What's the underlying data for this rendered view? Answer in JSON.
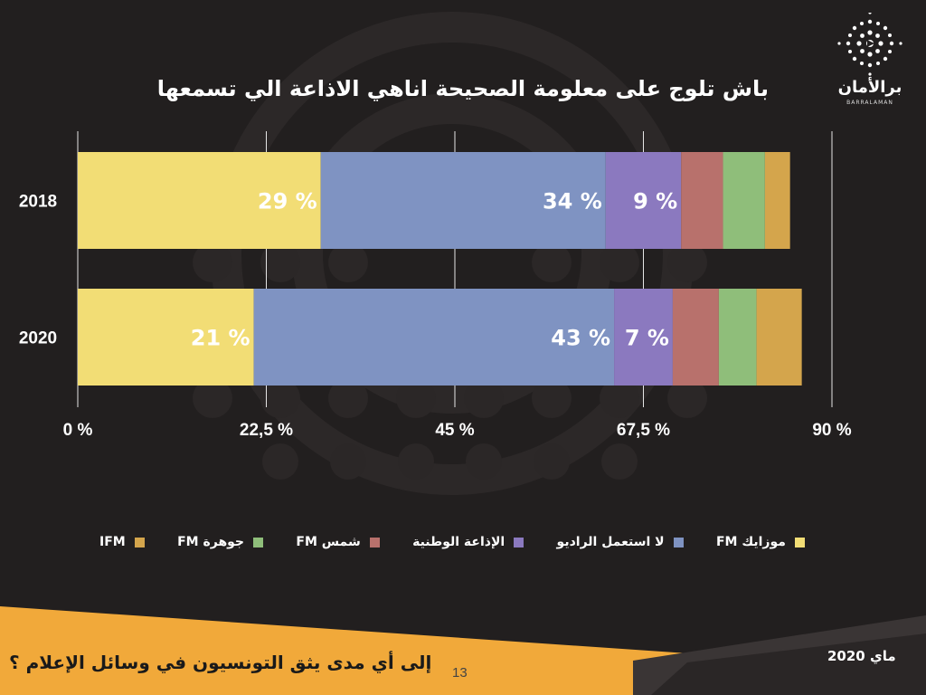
{
  "header": {
    "title": "باش تلوج على معلومة الصحيحة اناهي الاذاعة الي تسمعها",
    "logo_word": "برالأمان",
    "logo_sub": "BARRALAMAN"
  },
  "chart_data": {
    "type": "bar",
    "orientation": "horizontal",
    "stacked": true,
    "title": "باش تلوج على معلومة الصحيحة اناهي الاذاعة الي تسمعها",
    "categories": [
      "2018",
      "2020"
    ],
    "xlim": [
      0,
      90
    ],
    "xticks": [
      "0 %",
      "22,5 %",
      "45 %",
      "67,5 %",
      "90 %"
    ],
    "xtick_values": [
      0,
      22.5,
      45,
      67.5,
      90
    ],
    "grid": true,
    "legend_position": "bottom",
    "series": [
      {
        "name": "موزايك FM",
        "color": "#f2dd75",
        "values": [
          29,
          21
        ],
        "labels": [
          "29 %",
          "21 %"
        ]
      },
      {
        "name": "لا استعمل الراديو",
        "color": "#7f93c2",
        "values": [
          34,
          43
        ],
        "labels": [
          "34 %",
          "43 %"
        ]
      },
      {
        "name": "الإذاعة الوطنية",
        "color": "#8b79bf",
        "values": [
          9,
          7
        ],
        "labels": [
          "9 %",
          "7 %"
        ]
      },
      {
        "name": "شمس FM",
        "color": "#b8716c",
        "values": [
          5,
          5.5
        ],
        "labels": [
          "",
          ""
        ]
      },
      {
        "name": "جوهرة FM",
        "color": "#8fbe7a",
        "values": [
          5,
          4.5
        ],
        "labels": [
          "",
          ""
        ]
      },
      {
        "name": "IFM",
        "color": "#d4a54c",
        "values": [
          3,
          5.4
        ],
        "labels": [
          "",
          ""
        ]
      }
    ]
  },
  "footer": {
    "question": "إلى أي مدى يثق التونسيون في وسائل الإعلام ؟",
    "page_number": "13",
    "date": "ماي 2020"
  },
  "colors": {
    "background": "#221f1f",
    "accent_orange": "#f1a93a"
  }
}
